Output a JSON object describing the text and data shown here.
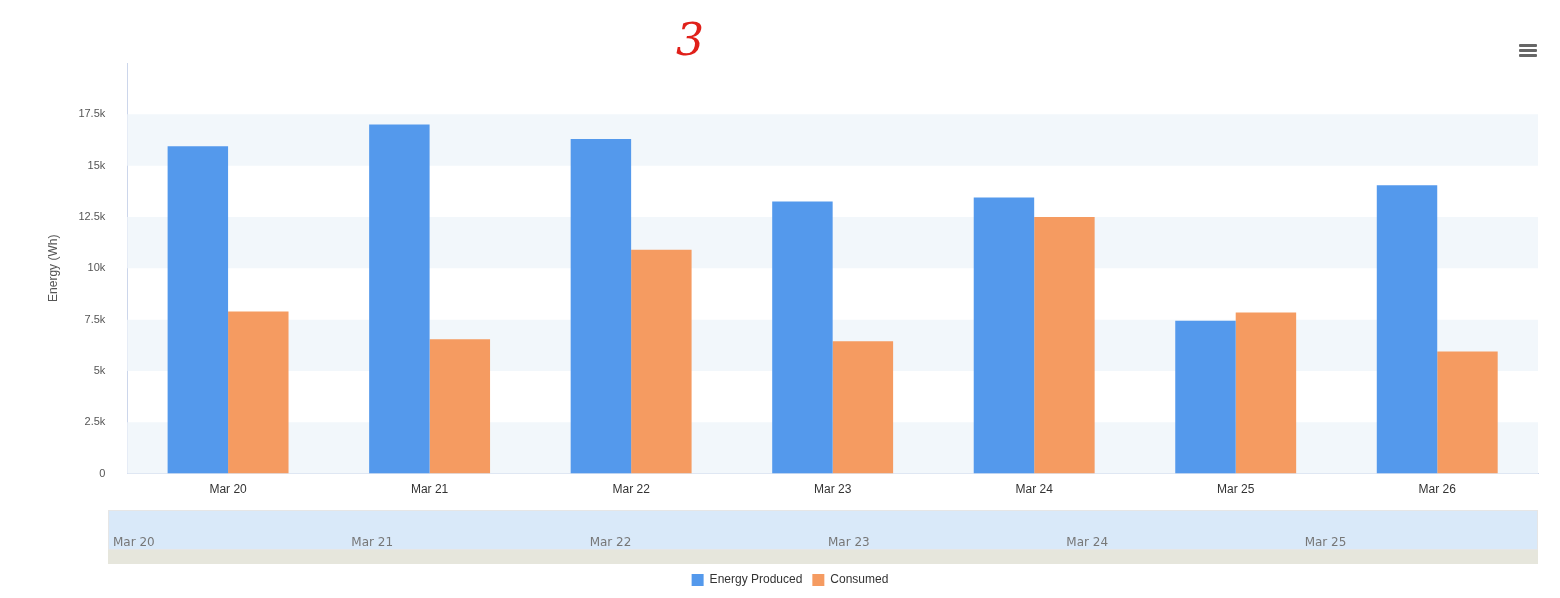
{
  "chart_data": {
    "type": "bar",
    "ylabel": "Energy (Wh)",
    "categories": [
      "Mar 20",
      "Mar 21",
      "Mar 22",
      "Mar 23",
      "Mar 24",
      "Mar 25",
      "Mar 26"
    ],
    "series": [
      {
        "name": "Energy Produced",
        "color": "#5499ec",
        "values": [
          15950,
          17000,
          16300,
          13250,
          13450,
          7450,
          14050
        ]
      },
      {
        "name": "Consumed",
        "color": "#f59b61",
        "values": [
          7900,
          6550,
          10900,
          6450,
          12500,
          7850,
          5950
        ]
      }
    ],
    "ylim": [
      0,
      20000
    ],
    "yticks": [
      0,
      {
        "value": 2500,
        "label": "2.5k"
      },
      {
        "value": 5000,
        "label": "5k"
      },
      {
        "value": 7500,
        "label": "7.5k"
      },
      {
        "value": 10000,
        "label": "10k"
      },
      {
        "value": 12500,
        "label": "12.5k"
      },
      {
        "value": 15000,
        "label": "15k"
      },
      {
        "value": 17500,
        "label": "17.5k"
      }
    ],
    "bands": [
      {
        "axis": "y",
        "from": 0,
        "to": 2500,
        "color": "#f2f7fb"
      },
      {
        "axis": "y",
        "from": 5000,
        "to": 7500,
        "color": "#f2f7fb"
      },
      {
        "axis": "y",
        "from": 10000,
        "to": 12500,
        "color": "#f2f7fb"
      },
      {
        "axis": "y",
        "from": 15000,
        "to": 17500,
        "color": "#f2f7fb"
      }
    ],
    "legend": "bottom",
    "annotations": [
      "3"
    ]
  }
}
